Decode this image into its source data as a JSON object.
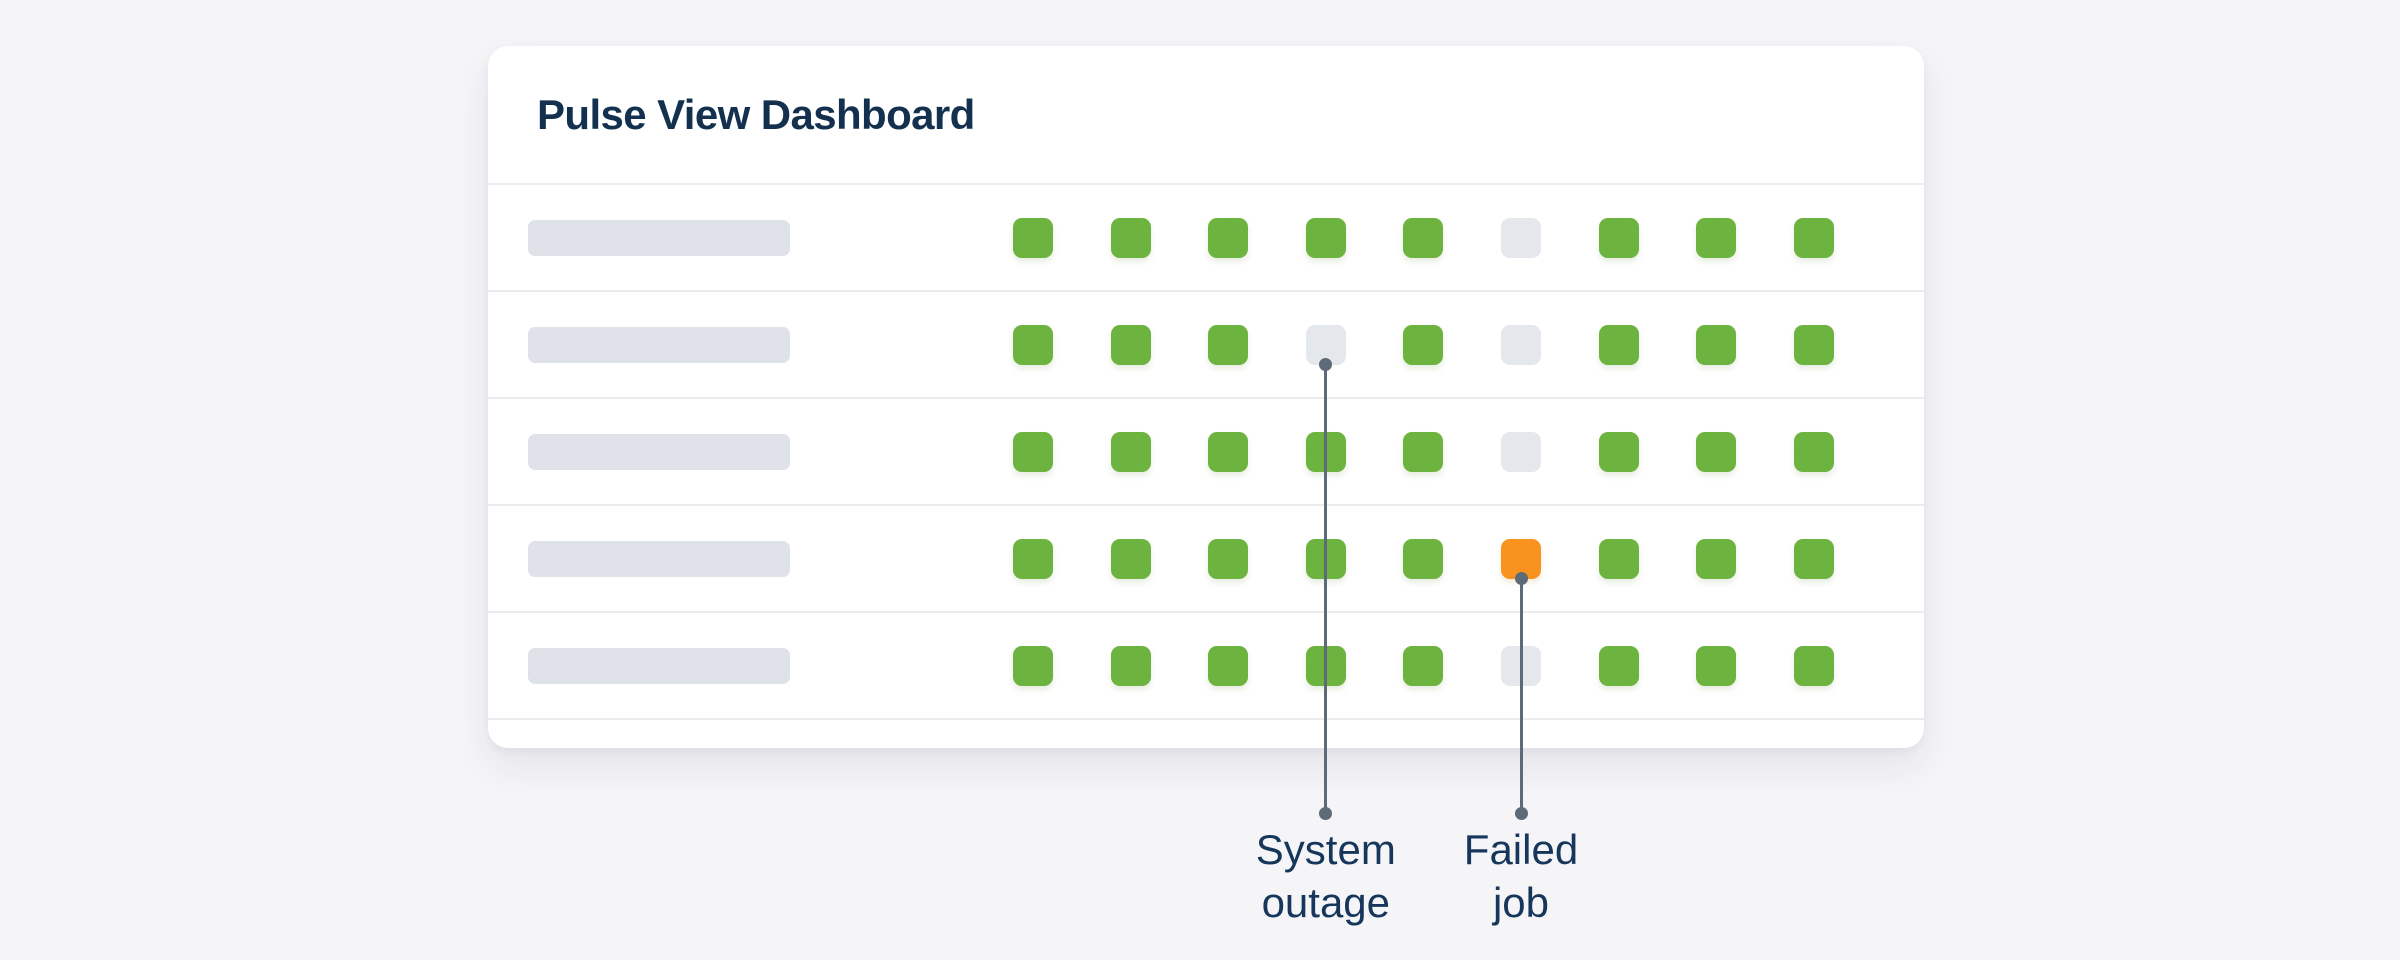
{
  "page": {
    "background": "#f5f5f8"
  },
  "card": {
    "title": "Pulse View Dashboard"
  },
  "colors": {
    "success_square": "#6db33f",
    "failed_square": "#f7931e",
    "outage_square": "#e4e7ec",
    "placeholder_bar": "#dfe3e9",
    "divider": "#ececf0",
    "callout": "#5d6a78",
    "title_text": "#14304f",
    "annotation_text": "#16365c",
    "card_background": "#ffffff",
    "page_background": "#f5f5f8"
  },
  "grid": {
    "columns": 9,
    "row_labels_placeholder": true,
    "rows": [
      {
        "cells": [
          "ok",
          "ok",
          "ok",
          "ok",
          "ok",
          "outage",
          "ok",
          "ok",
          "ok"
        ]
      },
      {
        "cells": [
          "ok",
          "ok",
          "ok",
          "outage",
          "ok",
          "outage",
          "ok",
          "ok",
          "ok"
        ]
      },
      {
        "cells": [
          "ok",
          "ok",
          "ok",
          "ok",
          "ok",
          "outage",
          "ok",
          "ok",
          "ok"
        ]
      },
      {
        "cells": [
          "ok",
          "ok",
          "ok",
          "ok",
          "ok",
          "failed",
          "ok",
          "ok",
          "ok"
        ]
      },
      {
        "cells": [
          "ok",
          "ok",
          "ok",
          "ok",
          "ok",
          "outage",
          "ok",
          "ok",
          "ok"
        ]
      }
    ]
  },
  "annotations": [
    {
      "label": "System outage",
      "label_lines": [
        "System",
        "outage"
      ],
      "status": "outage",
      "target": {
        "row": 2,
        "col": 4
      }
    },
    {
      "label": "Failed job",
      "label_lines": [
        "Failed",
        "job"
      ],
      "status": "failed",
      "target": {
        "row": 4,
        "col": 6
      }
    }
  ]
}
